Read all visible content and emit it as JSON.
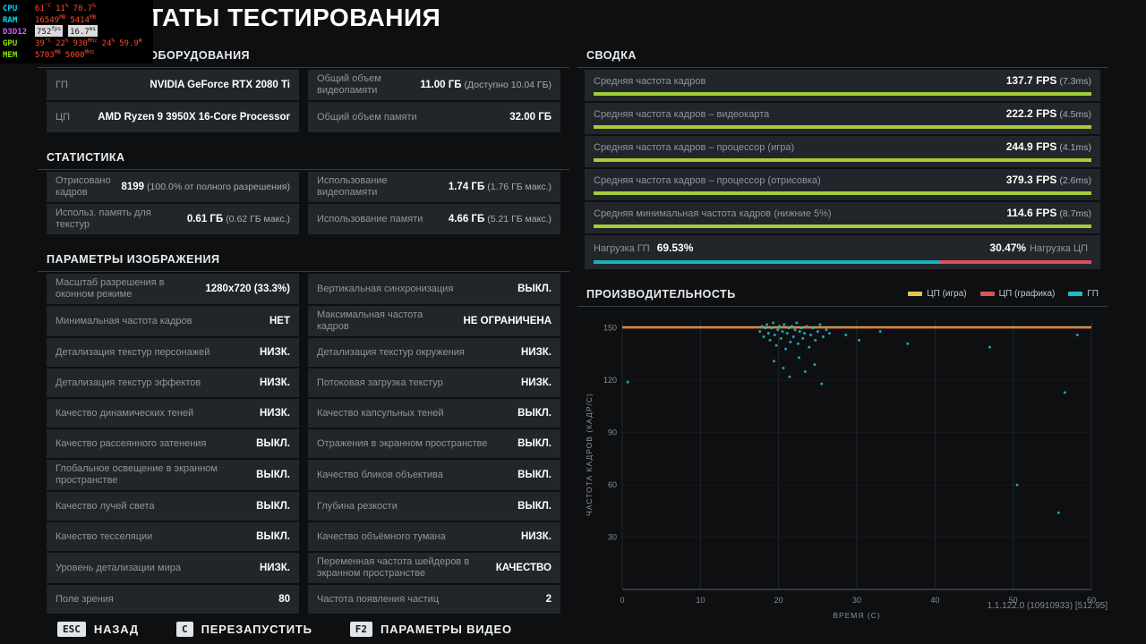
{
  "title": "РЕЗУЛЬТАТЫ ТЕСТИРОВАНИЯ",
  "version": "1.1.122.0 (10910933) [512.95]",
  "osd": {
    "value_color": "#ff4b2e",
    "lines": [
      {
        "label": "CPU",
        "color": "#00dcff",
        "vals": [
          [
            "61",
            "°C"
          ],
          [
            "11",
            "%"
          ],
          [
            "70.7",
            "%"
          ]
        ]
      },
      {
        "label": "RAM",
        "color": "#00dcff",
        "vals": [
          [
            "16549",
            "MB"
          ],
          [
            "5414",
            "MB"
          ]
        ]
      },
      {
        "label": "D3D12",
        "color": "#c862ff",
        "boxes": [
          [
            "752",
            "fps"
          ],
          [
            "16.7",
            "ms"
          ]
        ]
      },
      {
        "label": "GPU",
        "color": "#86e800",
        "vals": [
          [
            "39",
            "°C"
          ],
          [
            "22",
            "%"
          ],
          [
            "930",
            "MHz"
          ],
          [
            "24",
            "%"
          ],
          [
            "59.9",
            "W"
          ]
        ]
      },
      {
        "label": "MEM",
        "color": "#86e800",
        "vals": [
          [
            "5703",
            "MB"
          ],
          [
            "5000",
            "MHz"
          ]
        ]
      }
    ]
  },
  "hardware": {
    "title": "КОНФИГУРАЦИЯ ОБОРУДОВАНИЯ",
    "rows": [
      {
        "label": "ГП",
        "value": "NVIDIA GeForce RTX 2080 Ti"
      },
      {
        "label": "Общий объем видеопамяти",
        "value": "11.00 ГБ",
        "note": "(Доступно 10.04 ГБ)"
      },
      {
        "label": "ЦП",
        "value": "AMD Ryzen 9 3950X 16-Core Processor"
      },
      {
        "label": "Общий объем памяти",
        "value": "32.00 ГБ"
      }
    ]
  },
  "stats": {
    "title": "СТАТИСТИКА",
    "rows": [
      {
        "label": "Отрисовано кадров",
        "value": "8199",
        "note": "(100.0% от полного разрешения)"
      },
      {
        "label": "Использование видеопамяти",
        "value": "1.74 ГБ",
        "note": "(1.76 ГБ макс.)"
      },
      {
        "label": "Использ. память для текстур",
        "value": "0.61 ГБ",
        "note": "(0.62 ГБ макс.)"
      },
      {
        "label": "Использование памяти",
        "value": "4.66 ГБ",
        "note": "(5.21 ГБ макс.)"
      }
    ]
  },
  "params": {
    "title": "ПАРАМЕТРЫ ИЗОБРАЖЕНИЯ",
    "rows": [
      {
        "label": "Масштаб разрешения в оконном режиме",
        "value": "1280x720 (33.3%)"
      },
      {
        "label": "Вертикальная синхронизация",
        "value": "ВЫКЛ."
      },
      {
        "label": "Минимальная частота кадров",
        "value": "НЕТ"
      },
      {
        "label": "Максимальная частота кадров",
        "value": "НЕ ОГРАНИЧЕНА"
      },
      {
        "label": "Детализация текстур персонажей",
        "value": "НИЗК."
      },
      {
        "label": "Детализация текстур окружения",
        "value": "НИЗК."
      },
      {
        "label": "Детализация текстур эффектов",
        "value": "НИЗК."
      },
      {
        "label": "Потоковая загрузка текстур",
        "value": "НИЗК."
      },
      {
        "label": "Качество динамических теней",
        "value": "НИЗК."
      },
      {
        "label": "Качество капсульных теней",
        "value": "ВЫКЛ."
      },
      {
        "label": "Качество рассеянного затенения",
        "value": "ВЫКЛ."
      },
      {
        "label": "Отражения в экранном пространстве",
        "value": "ВЫКЛ."
      },
      {
        "label": "Глобальное освещение в экранном пространстве",
        "value": "ВЫКЛ."
      },
      {
        "label": "Качество бликов объектива",
        "value": "ВЫКЛ."
      },
      {
        "label": "Качество лучей света",
        "value": "ВЫКЛ."
      },
      {
        "label": "Глубина резкости",
        "value": "ВЫКЛ."
      },
      {
        "label": "Качество тесселяции",
        "value": "ВЫКЛ."
      },
      {
        "label": "Качество объёмного тумана",
        "value": "НИЗК."
      },
      {
        "label": "Уровень детализации мира",
        "value": "НИЗК."
      },
      {
        "label": "Переменная частота шейдеров в экранном пространстве",
        "value": "КАЧЕСТВО"
      },
      {
        "label": "Поле зрения",
        "value": "80"
      },
      {
        "label": "Частота появления частиц",
        "value": "2"
      }
    ]
  },
  "summary": {
    "title": "СВОДКА",
    "bar_color": "#a4cd39",
    "metrics": [
      {
        "label": "Средняя частота кадров",
        "value": "137.7 FPS",
        "note": "(7.3ms)",
        "bar": "100%"
      },
      {
        "label": "Средняя частота кадров – видеокарта",
        "value": "222.2 FPS",
        "note": "(4.5ms)",
        "bar": "100%"
      },
      {
        "label": "Средняя частота кадров – процессор (игра)",
        "value": "244.9 FPS",
        "note": "(4.1ms)",
        "bar": "100%"
      },
      {
        "label": "Средняя частота кадров – процессор (отрисовка)",
        "value": "379.3 FPS",
        "note": "(2.6ms)",
        "bar": "100%"
      },
      {
        "label": "Средняя минимальная частота кадров (нижние 5%)",
        "value": "114.6 FPS",
        "note": "(8.7ms)",
        "bar": "100%"
      }
    ],
    "load": {
      "gpu_label": "Нагрузка ГП",
      "gpu_value": "69.53%",
      "gpu_bar": "69.53%",
      "gpu_color": "#14b1bd",
      "cpu_label": "Нагрузка ЦП",
      "cpu_value": "30.47%",
      "cpu_bar": "30.47%",
      "cpu_color": "#dc4f5c"
    }
  },
  "chart_data": {
    "type": "scatter",
    "title": "ПРОИЗВОДИТЕЛЬНОСТЬ",
    "xlabel": "ВРЕМЯ (С)",
    "ylabel": "ЧАСТОТА КАДРОВ (КАДР/С)",
    "xlim": [
      0,
      60
    ],
    "ylim": [
      0,
      155
    ],
    "xticks": [
      0,
      10,
      20,
      30,
      40,
      50,
      60
    ],
    "yticks": [
      30,
      60,
      90,
      120,
      150
    ],
    "grid": "vertical",
    "legend_position": "top-right",
    "legend": [
      {
        "name": "ЦП (игра)",
        "color": "#e5c54a"
      },
      {
        "name": "ЦП (графика)",
        "color": "#d85555"
      },
      {
        "name": "ГП",
        "color": "#1fb9c4"
      }
    ],
    "series": [
      {
        "name": "ЦП (игра)",
        "type": "line",
        "color": "#e5c54a",
        "y": 150.6
      },
      {
        "name": "ЦП (графика)",
        "type": "line",
        "color": "#d85555",
        "y": 150
      },
      {
        "name": "ГП",
        "type": "scatter",
        "color": "#1fb9c4",
        "points": [
          [
            17.6,
            148
          ],
          [
            17.9,
            151
          ],
          [
            18.1,
            145
          ],
          [
            18.3,
            150
          ],
          [
            18.5,
            152
          ],
          [
            18.7,
            147
          ],
          [
            18.9,
            143
          ],
          [
            19.1,
            150
          ],
          [
            19.3,
            153
          ],
          [
            19.5,
            146
          ],
          [
            19.7,
            140
          ],
          [
            19.9,
            149
          ],
          [
            20.1,
            151
          ],
          [
            20.3,
            144
          ],
          [
            20.5,
            148
          ],
          [
            20.7,
            152
          ],
          [
            20.9,
            138
          ],
          [
            21.1,
            147
          ],
          [
            21.3,
            150
          ],
          [
            21.5,
            142
          ],
          [
            21.7,
            151
          ],
          [
            21.9,
            145
          ],
          [
            22.1,
            149
          ],
          [
            22.3,
            153
          ],
          [
            22.5,
            141
          ],
          [
            22.7,
            148
          ],
          [
            22.9,
            150
          ],
          [
            23.1,
            144
          ],
          [
            23.3,
            147
          ],
          [
            23.6,
            151
          ],
          [
            23.9,
            139
          ],
          [
            24.1,
            146
          ],
          [
            24.4,
            150
          ],
          [
            24.7,
            143
          ],
          [
            25.0,
            148
          ],
          [
            25.3,
            152
          ],
          [
            25.7,
            145
          ],
          [
            26.1,
            149
          ],
          [
            26.5,
            147
          ],
          [
            19.4,
            131
          ],
          [
            20.6,
            127
          ],
          [
            21.4,
            122
          ],
          [
            22.6,
            133
          ],
          [
            23.4,
            125
          ],
          [
            24.6,
            129
          ],
          [
            25.5,
            118
          ],
          [
            0.7,
            119
          ],
          [
            28.6,
            146
          ],
          [
            30.3,
            143
          ],
          [
            33.0,
            148
          ],
          [
            36.5,
            141
          ],
          [
            47.0,
            139
          ],
          [
            50.5,
            60
          ],
          [
            55.8,
            44
          ],
          [
            56.6,
            113
          ],
          [
            58.2,
            146
          ]
        ]
      }
    ]
  },
  "footer": {
    "actions": [
      {
        "key": "ESC",
        "label": "НАЗАД"
      },
      {
        "key": "C",
        "label": "ПЕРЕЗАПУСТИТЬ"
      },
      {
        "key": "F2",
        "label": "ПАРАМЕТРЫ ВИДЕО"
      }
    ]
  }
}
